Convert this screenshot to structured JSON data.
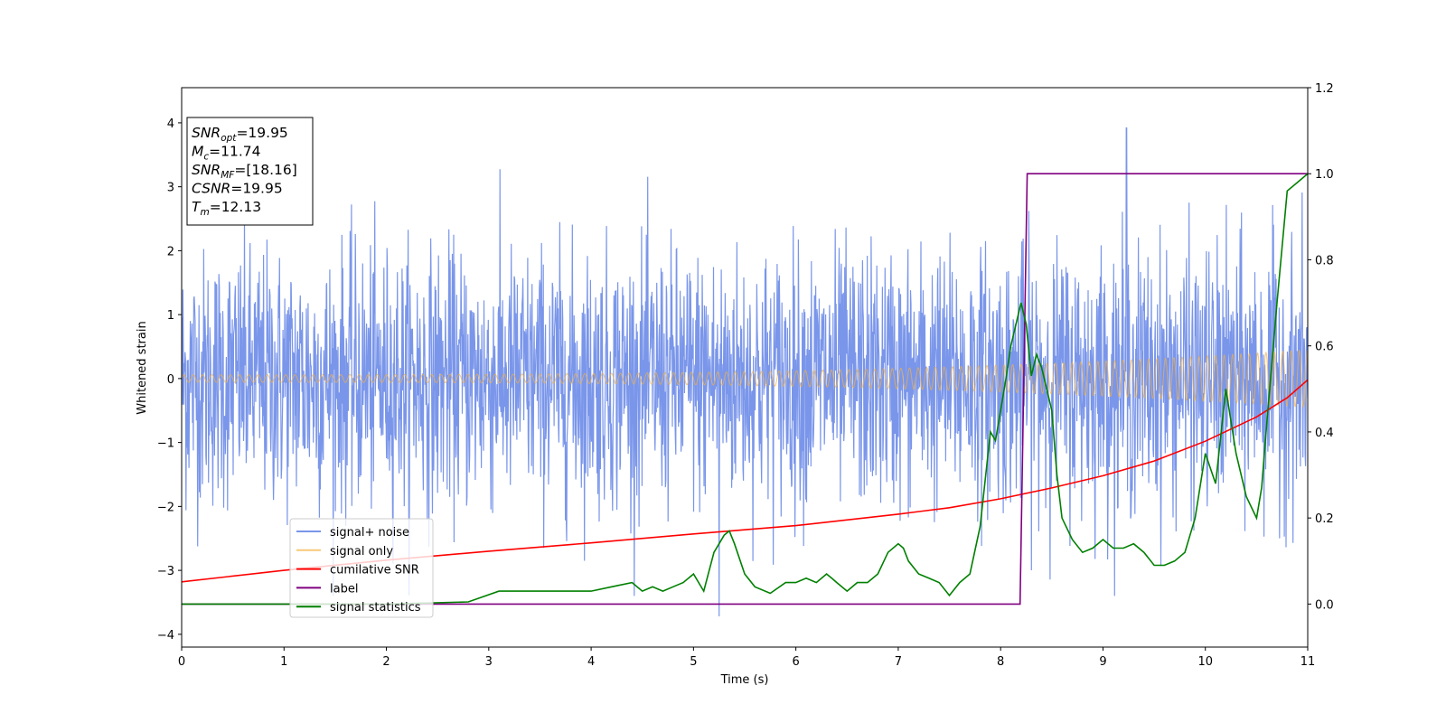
{
  "chart_data": {
    "type": "line",
    "xlabel": "Time (s)",
    "ylabel": "Whitened strain",
    "xlim": [
      0,
      11
    ],
    "ylim": [
      -4.2,
      4.55
    ],
    "y2lim": [
      -0.1,
      1.2
    ],
    "x_ticks": [
      "0",
      "1",
      "2",
      "3",
      "4",
      "5",
      "6",
      "7",
      "8",
      "9",
      "10",
      "11"
    ],
    "y_ticks": [
      "−4",
      "−3",
      "−2",
      "−1",
      "0",
      "1",
      "2",
      "3",
      "4"
    ],
    "y2_ticks": [
      "0.0",
      "0.2",
      "0.4",
      "0.6",
      "0.8",
      "1.0",
      "1.2"
    ],
    "grid": false,
    "legend_position": "lower-left",
    "info_box": {
      "lines": [
        {
          "sym": "SNR",
          "sub": "opt",
          "value": "=19.95"
        },
        {
          "sym": "M",
          "sub": "c",
          "value": "=11.74"
        },
        {
          "sym": "SNR",
          "sub": "MF",
          "value": "=[18.16]"
        },
        {
          "sym": "CSNR",
          "sub": "",
          "value": "=19.95"
        },
        {
          "sym": "T",
          "sub": "m",
          "value": "=12.13"
        }
      ]
    },
    "series": [
      {
        "name": "signal+ noise",
        "color": "#4169e1",
        "axis": "left",
        "description_values": {
          "noise_sigma": 1.0,
          "typical_peak": 3.5,
          "max": 3.92,
          "max_at": 9.23,
          "min": -3.72,
          "min_at": 5.25
        }
      },
      {
        "name": "signal only",
        "color": "#f5b041",
        "axis": "left",
        "amplitude_start": 0.06,
        "amplitude_end": 0.45
      },
      {
        "name": "cumilative SNR",
        "color": "#ff0000",
        "axis": "left",
        "x": [
          0,
          1,
          2,
          3,
          4,
          5,
          6,
          7,
          7.5,
          8,
          8.5,
          9,
          9.5,
          10,
          10.5,
          10.8,
          11
        ],
        "y": [
          -3.18,
          -3.0,
          -2.84,
          -2.7,
          -2.57,
          -2.43,
          -2.3,
          -2.12,
          -2.02,
          -1.88,
          -1.71,
          -1.52,
          -1.29,
          -0.98,
          -0.6,
          -0.3,
          -0.02
        ]
      },
      {
        "name": "label",
        "color": "#800080",
        "axis": "right",
        "x": [
          0,
          8.19,
          8.26,
          11
        ],
        "y": [
          0,
          0,
          1,
          1
        ]
      },
      {
        "name": "signal statistics",
        "color": "#008000",
        "axis": "right",
        "x": [
          0,
          2.0,
          2.8,
          3.1,
          3.4,
          3.8,
          4.0,
          4.2,
          4.4,
          4.5,
          4.6,
          4.7,
          4.8,
          4.9,
          5.0,
          5.1,
          5.2,
          5.3,
          5.35,
          5.4,
          5.5,
          5.6,
          5.75,
          5.9,
          6.0,
          6.1,
          6.2,
          6.3,
          6.35,
          6.4,
          6.5,
          6.6,
          6.7,
          6.8,
          6.9,
          7.0,
          7.05,
          7.1,
          7.2,
          7.3,
          7.4,
          7.5,
          7.6,
          7.7,
          7.8,
          7.9,
          7.95,
          8.0,
          8.05,
          8.1,
          8.2,
          8.25,
          8.3,
          8.35,
          8.4,
          8.5,
          8.55,
          8.6,
          8.7,
          8.8,
          8.9,
          9.0,
          9.1,
          9.2,
          9.3,
          9.4,
          9.5,
          9.6,
          9.7,
          9.8,
          9.9,
          10.0,
          10.1,
          10.2,
          10.3,
          10.4,
          10.5,
          10.55,
          10.6,
          10.7,
          10.8,
          10.9,
          11.0
        ],
        "y": [
          0,
          0.0,
          0.005,
          0.03,
          0.03,
          0.03,
          0.03,
          0.04,
          0.05,
          0.03,
          0.04,
          0.03,
          0.04,
          0.05,
          0.07,
          0.03,
          0.12,
          0.16,
          0.17,
          0.14,
          0.07,
          0.04,
          0.025,
          0.05,
          0.05,
          0.06,
          0.05,
          0.07,
          0.06,
          0.05,
          0.03,
          0.05,
          0.05,
          0.07,
          0.12,
          0.14,
          0.13,
          0.1,
          0.07,
          0.06,
          0.05,
          0.02,
          0.05,
          0.07,
          0.18,
          0.4,
          0.38,
          0.45,
          0.52,
          0.6,
          0.7,
          0.65,
          0.53,
          0.58,
          0.55,
          0.45,
          0.3,
          0.2,
          0.15,
          0.12,
          0.13,
          0.15,
          0.13,
          0.13,
          0.14,
          0.12,
          0.09,
          0.09,
          0.1,
          0.12,
          0.2,
          0.35,
          0.28,
          0.5,
          0.35,
          0.25,
          0.2,
          0.27,
          0.42,
          0.7,
          0.96,
          0.98,
          1.0
        ]
      }
    ]
  }
}
